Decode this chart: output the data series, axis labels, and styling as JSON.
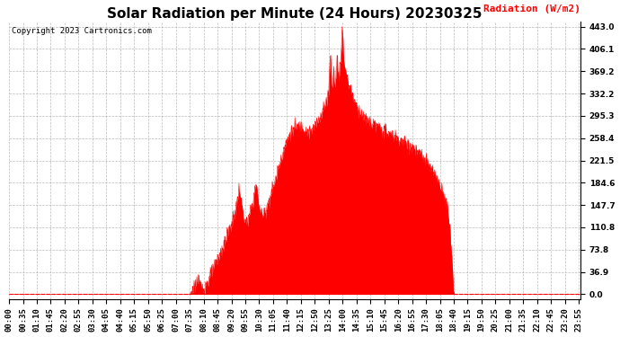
{
  "title": "Solar Radiation per Minute (24 Hours) 20230325",
  "copyright_text": "Copyright 2023 Cartronics.com",
  "ylabel": "Radiation (W/m2)",
  "ylabel_color": "#ff0000",
  "fill_color": "#ff0000",
  "line_color": "#ff0000",
  "background_color": "#ffffff",
  "grid_color": "#aaaaaa",
  "yticks": [
    0.0,
    36.9,
    73.8,
    110.8,
    147.7,
    184.6,
    221.5,
    258.4,
    295.3,
    332.2,
    369.2,
    406.1,
    443.0
  ],
  "ymax": 443.0,
  "ymin": 0.0,
  "title_fontsize": 11,
  "axis_label_fontsize": 8,
  "tick_fontsize": 6.5,
  "copyright_fontsize": 6.5,
  "num_minutes": 1440,
  "keypoints": [
    [
      0,
      0.0
    ],
    [
      454,
      0.0
    ],
    [
      460,
      5.0
    ],
    [
      470,
      18.0
    ],
    [
      475,
      22.0
    ],
    [
      480,
      15.0
    ],
    [
      490,
      10.0
    ],
    [
      500,
      20.0
    ],
    [
      510,
      35.0
    ],
    [
      520,
      50.0
    ],
    [
      530,
      65.0
    ],
    [
      540,
      80.0
    ],
    [
      550,
      100.0
    ],
    [
      560,
      115.0
    ],
    [
      565,
      125.0
    ],
    [
      570,
      140.0
    ],
    [
      575,
      155.0
    ],
    [
      577,
      165.0
    ],
    [
      580,
      175.0
    ],
    [
      582,
      165.0
    ],
    [
      585,
      150.0
    ],
    [
      590,
      130.0
    ],
    [
      595,
      120.0
    ],
    [
      600,
      115.0
    ],
    [
      605,
      130.0
    ],
    [
      610,
      145.0
    ],
    [
      615,
      155.0
    ],
    [
      617,
      165.0
    ],
    [
      620,
      175.0
    ],
    [
      622,
      183.0
    ],
    [
      624,
      175.0
    ],
    [
      626,
      160.0
    ],
    [
      630,
      145.0
    ],
    [
      635,
      135.0
    ],
    [
      640,
      130.0
    ],
    [
      645,
      138.0
    ],
    [
      650,
      148.0
    ],
    [
      655,
      158.0
    ],
    [
      660,
      168.0
    ],
    [
      665,
      178.0
    ],
    [
      670,
      188.0
    ],
    [
      675,
      200.0
    ],
    [
      680,
      215.0
    ],
    [
      685,
      225.0
    ],
    [
      690,
      235.0
    ],
    [
      695,
      245.0
    ],
    [
      700,
      255.0
    ],
    [
      705,
      262.0
    ],
    [
      710,
      268.0
    ],
    [
      715,
      272.0
    ],
    [
      720,
      275.0
    ],
    [
      730,
      278.0
    ],
    [
      740,
      278.0
    ],
    [
      745,
      272.0
    ],
    [
      750,
      268.0
    ],
    [
      760,
      268.0
    ],
    [
      770,
      278.0
    ],
    [
      780,
      290.0
    ],
    [
      790,
      305.0
    ],
    [
      800,
      320.0
    ],
    [
      805,
      340.0
    ],
    [
      807,
      370.0
    ],
    [
      809,
      395.0
    ],
    [
      810,
      385.0
    ],
    [
      811,
      365.0
    ],
    [
      812,
      350.0
    ],
    [
      815,
      348.0
    ],
    [
      817,
      370.0
    ],
    [
      819,
      360.0
    ],
    [
      821,
      345.0
    ],
    [
      823,
      360.0
    ],
    [
      825,
      380.0
    ],
    [
      826,
      395.0
    ],
    [
      827,
      385.0
    ],
    [
      828,
      370.0
    ],
    [
      830,
      360.0
    ],
    [
      832,
      370.0
    ],
    [
      834,
      383.0
    ],
    [
      836,
      395.0
    ],
    [
      837,
      410.0
    ],
    [
      838,
      425.0
    ],
    [
      839,
      443.0
    ],
    [
      840,
      435.0
    ],
    [
      841,
      420.0
    ],
    [
      842,
      405.0
    ],
    [
      843,
      395.0
    ],
    [
      845,
      378.0
    ],
    [
      850,
      360.0
    ],
    [
      855,
      350.0
    ],
    [
      860,
      340.0
    ],
    [
      865,
      330.0
    ],
    [
      870,
      318.0
    ],
    [
      880,
      305.0
    ],
    [
      890,
      295.0
    ],
    [
      900,
      288.0
    ],
    [
      920,
      280.0
    ],
    [
      940,
      272.0
    ],
    [
      960,
      265.0
    ],
    [
      980,
      258.0
    ],
    [
      1000,
      250.0
    ],
    [
      1020,
      240.0
    ],
    [
      1040,
      228.0
    ],
    [
      1060,
      210.0
    ],
    [
      1080,
      188.0
    ],
    [
      1095,
      165.0
    ],
    [
      1105,
      140.0
    ],
    [
      1110,
      110.0
    ],
    [
      1113,
      80.0
    ],
    [
      1116,
      50.0
    ],
    [
      1118,
      25.0
    ],
    [
      1120,
      5.0
    ],
    [
      1122,
      0.0
    ],
    [
      1439,
      0.0
    ]
  ]
}
